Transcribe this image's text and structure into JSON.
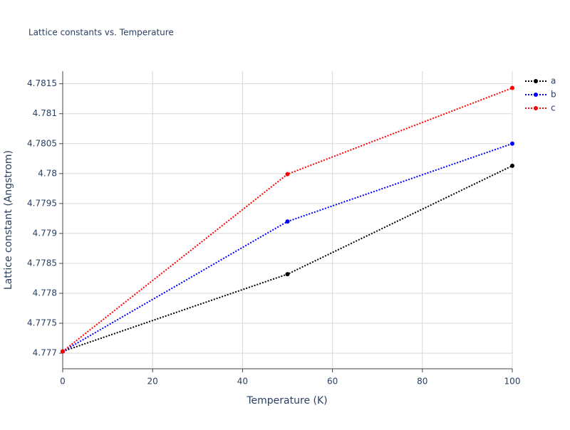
{
  "chart_data": {
    "type": "line",
    "title": "Lattice constants vs. Temperature",
    "x_label": "Temperature (K)",
    "y_label": "Lattice constant (Angstrom)",
    "x": [
      0,
      50,
      100
    ],
    "series": [
      {
        "name": "a",
        "color": "#000000",
        "values": [
          4.77703,
          4.77832,
          4.78013
        ]
      },
      {
        "name": "b",
        "color": "#0000ff",
        "values": [
          4.77703,
          4.7792,
          4.7805
        ]
      },
      {
        "name": "c",
        "color": "#ff0000",
        "values": [
          4.77703,
          4.77999,
          4.78143
        ]
      }
    ],
    "xlim": [
      0,
      100
    ],
    "xticks": [
      0,
      20,
      40,
      60,
      80,
      100
    ],
    "ylim": [
      4.77674,
      4.78171
    ],
    "yticks": [
      4.777,
      4.7775,
      4.778,
      4.7785,
      4.779,
      4.7795,
      4.78,
      4.7805,
      4.781,
      4.7815
    ],
    "grid": true,
    "legend": "top-right"
  }
}
